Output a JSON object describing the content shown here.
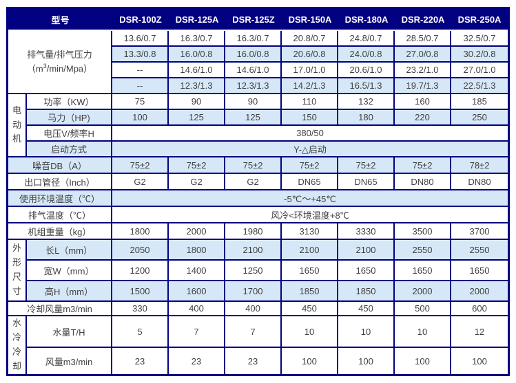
{
  "header": {
    "model_label": "型号",
    "models": [
      "DSR-100Z",
      "DSR-125A",
      "DSR-125Z",
      "DSR-150A",
      "DSR-180A",
      "DSR-220A",
      "DSR-250A"
    ]
  },
  "discharge": {
    "label_line1": "排气量/排气压力",
    "label_line2_pre": "（m",
    "label_line2_sup": "3",
    "label_line2_post": "/min/Mpa）",
    "rows": [
      [
        "13.6/0.7",
        "16.3/0.7",
        "16.3/0.7",
        "20.8/0.7",
        "24.8/0.7",
        "28.5/0.7",
        "32.5/0.7"
      ],
      [
        "13.3/0.8",
        "16.0/0.8",
        "16.0/0.8",
        "20.6/0.8",
        "24.0/0.8",
        "27.0/0.8",
        "30.2/0.8"
      ],
      [
        "--",
        "14.6/1.0",
        "14.6/1.0",
        "17.0/1.0",
        "20.6/1.0",
        "23.2/1.0",
        "27.0/1.0"
      ],
      [
        "--",
        "12.3/1.3",
        "12.3/1.3",
        "14.2/1.3",
        "16.5/1.3",
        "19.7/1.3",
        "22.5/1.3"
      ]
    ]
  },
  "motor": {
    "group_label": "电动机",
    "power": {
      "label": "功率（KW）",
      "values": [
        "75",
        "90",
        "90",
        "110",
        "132",
        "160",
        "185"
      ]
    },
    "horsepower": {
      "label": "马力（HP)",
      "values": [
        "100",
        "125",
        "125",
        "150",
        "180",
        "220",
        "250"
      ]
    },
    "voltage": {
      "label": "电压V/频率H",
      "value": "380/50"
    },
    "start_mode": {
      "label": "启动方式",
      "value": "Y-△启动"
    }
  },
  "noise": {
    "label": "噪音DB（A）",
    "values": [
      "75±2",
      "75±2",
      "75±2",
      "75±2",
      "75±2",
      "75±2",
      "78±2"
    ]
  },
  "outlet": {
    "label": "出口管径（Inch）",
    "values": [
      "G2",
      "G2",
      "G2",
      "DN65",
      "DN65",
      "DN80",
      "DN80"
    ]
  },
  "ambient_temp": {
    "label": "使用环境温度（℃）",
    "value": "-5℃～+45℃"
  },
  "exhaust_temp": {
    "label": "排气温度（℃）",
    "value": "风冷<环境温度+8℃"
  },
  "weight": {
    "label": "机组重量（kg）",
    "values": [
      "1800",
      "2000",
      "1980",
      "3130",
      "3330",
      "3500",
      "3700"
    ]
  },
  "dimensions": {
    "group_label": "外形尺寸",
    "length": {
      "label": "长L（mm）",
      "values": [
        "2050",
        "1800",
        "2100",
        "2100",
        "2100",
        "2550",
        "2550"
      ]
    },
    "width": {
      "label": "宽W（mm）",
      "values": [
        "1200",
        "1400",
        "1250",
        "1650",
        "1650",
        "1650",
        "1650"
      ]
    },
    "height": {
      "label": "高H（mm）",
      "values": [
        "1500",
        "1600",
        "1700",
        "1850",
        "1850",
        "2000",
        "2000"
      ]
    }
  },
  "cooling_air": {
    "label": "冷却风量m3/min",
    "values": [
      "330",
      "400",
      "400",
      "450",
      "450",
      "500",
      "600"
    ]
  },
  "water_cooling": {
    "group_label": "水冷冷却",
    "water_volume": {
      "label": "水量T/H",
      "values": [
        "5",
        "7",
        "7",
        "10",
        "10",
        "10",
        "12"
      ]
    },
    "air_volume": {
      "label": "风量m3/min",
      "values": [
        "23",
        "23",
        "23",
        "100",
        "100",
        "100",
        "100"
      ]
    }
  },
  "colors": {
    "navy": "#000080",
    "light_blue": "#D6E8F7",
    "text": "#404040",
    "header_text": "#FFFFFF"
  }
}
